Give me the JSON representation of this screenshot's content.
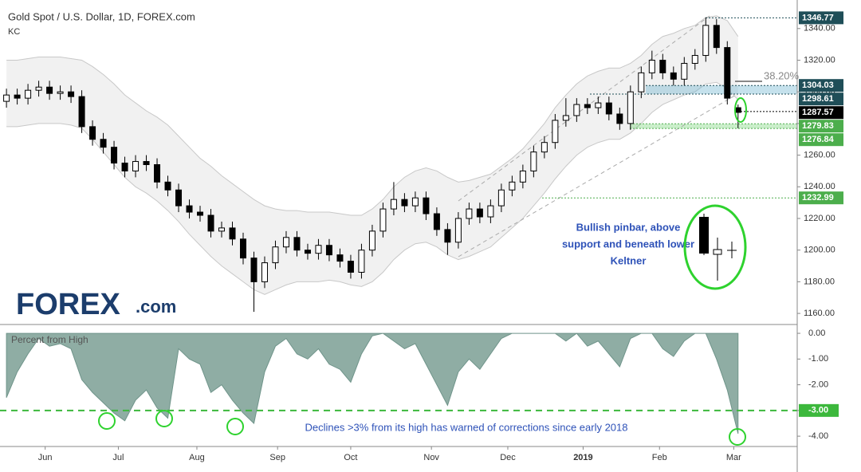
{
  "chart_data": [
    {
      "type": "candlestick",
      "title": "Gold Spot / U.S. Dollar, 1D, FOREX.com",
      "indicator": "KC",
      "x": [
        0,
        1,
        2,
        3,
        4,
        5,
        6,
        7,
        8,
        9,
        10,
        11,
        12,
        13,
        14,
        15,
        16,
        17,
        18,
        19,
        20,
        21,
        22,
        23,
        24,
        25,
        26,
        27,
        28,
        29,
        30,
        31,
        32,
        33,
        34,
        35,
        36,
        37,
        38,
        39,
        40,
        41,
        42,
        43,
        44,
        45,
        46,
        47,
        48,
        49,
        50,
        51,
        52,
        53,
        54,
        55,
        56,
        57,
        58,
        59,
        60,
        61,
        62,
        63,
        64,
        65,
        66,
        67,
        68
      ],
      "open": [
        1294,
        1298,
        1296,
        1301,
        1303,
        1299,
        1300,
        1297,
        1278,
        1270,
        1265,
        1255,
        1250,
        1256,
        1254,
        1243,
        1238,
        1228,
        1224,
        1222,
        1212,
        1214,
        1207,
        1195,
        1180,
        1192,
        1202,
        1208,
        1200,
        1198,
        1203,
        1197,
        1193,
        1186,
        1200,
        1212,
        1226,
        1232,
        1228,
        1233,
        1223,
        1213,
        1205,
        1220,
        1226,
        1221,
        1228,
        1238,
        1243,
        1250,
        1262,
        1268,
        1282,
        1285,
        1292,
        1290,
        1293,
        1286,
        1280,
        1300,
        1312,
        1320,
        1312,
        1308,
        1318,
        1323,
        1342,
        1328,
        1290
      ],
      "high": [
        1302,
        1302,
        1305,
        1307,
        1307,
        1304,
        1304,
        1301,
        1282,
        1274,
        1269,
        1259,
        1260,
        1260,
        1258,
        1247,
        1242,
        1232,
        1228,
        1226,
        1218,
        1218,
        1211,
        1199,
        1196,
        1206,
        1212,
        1212,
        1204,
        1207,
        1207,
        1201,
        1197,
        1204,
        1216,
        1230,
        1243,
        1236,
        1237,
        1237,
        1227,
        1217,
        1224,
        1230,
        1230,
        1232,
        1242,
        1247,
        1254,
        1266,
        1272,
        1286,
        1296,
        1296,
        1296,
        1297,
        1297,
        1290,
        1304,
        1316,
        1326,
        1324,
        1316,
        1322,
        1327,
        1347,
        1346,
        1332,
        1292
      ],
      "low": [
        1290,
        1292,
        1292,
        1297,
        1295,
        1295,
        1293,
        1274,
        1266,
        1261,
        1251,
        1246,
        1246,
        1250,
        1239,
        1234,
        1224,
        1220,
        1218,
        1208,
        1208,
        1203,
        1191,
        1161,
        1176,
        1188,
        1198,
        1196,
        1194,
        1194,
        1193,
        1189,
        1182,
        1182,
        1196,
        1208,
        1222,
        1224,
        1224,
        1219,
        1209,
        1197,
        1201,
        1216,
        1217,
        1217,
        1224,
        1234,
        1239,
        1246,
        1258,
        1264,
        1278,
        1281,
        1286,
        1286,
        1282,
        1276,
        1276,
        1296,
        1308,
        1308,
        1304,
        1304,
        1314,
        1319,
        1324,
        1292,
        1277
      ],
      "close": [
        1298,
        1296,
        1301,
        1303,
        1299,
        1300,
        1297,
        1278,
        1270,
        1265,
        1255,
        1250,
        1256,
        1254,
        1243,
        1238,
        1228,
        1224,
        1222,
        1212,
        1214,
        1207,
        1195,
        1180,
        1192,
        1202,
        1208,
        1200,
        1198,
        1203,
        1197,
        1193,
        1186,
        1200,
        1212,
        1226,
        1232,
        1228,
        1233,
        1223,
        1213,
        1205,
        1220,
        1226,
        1221,
        1228,
        1238,
        1243,
        1250,
        1262,
        1268,
        1282,
        1285,
        1292,
        1290,
        1293,
        1286,
        1280,
        1300,
        1312,
        1320,
        1312,
        1308,
        1318,
        1323,
        1342,
        1328,
        1296,
        1287
      ],
      "up_color": "#ffffff",
      "down_color": "#000000",
      "keltner": {
        "color": "#f1f1f1",
        "upper": [
          1320,
          1320,
          1321,
          1322,
          1322,
          1322,
          1321,
          1320,
          1316,
          1311,
          1305,
          1298,
          1293,
          1288,
          1284,
          1279,
          1272,
          1265,
          1258,
          1253,
          1247,
          1242,
          1237,
          1232,
          1228,
          1226,
          1225,
          1225,
          1224,
          1224,
          1224,
          1223,
          1222,
          1222,
          1226,
          1232,
          1240,
          1246,
          1250,
          1252,
          1250,
          1246,
          1243,
          1244,
          1246,
          1248,
          1253,
          1258,
          1264,
          1272,
          1280,
          1290,
          1298,
          1305,
          1310,
          1313,
          1315,
          1315,
          1318,
          1323,
          1330,
          1335,
          1337,
          1340,
          1342,
          1347,
          1348,
          1345,
          1335
        ],
        "lower": [
          1278,
          1278,
          1279,
          1280,
          1280,
          1280,
          1279,
          1277,
          1270,
          1262,
          1254,
          1246,
          1240,
          1236,
          1231,
          1225,
          1218,
          1210,
          1203,
          1196,
          1190,
          1185,
          1180,
          1175,
          1172,
          1175,
          1178,
          1180,
          1180,
          1180,
          1181,
          1180,
          1178,
          1177,
          1180,
          1186,
          1194,
          1200,
          1204,
          1205,
          1202,
          1197,
          1194,
          1196,
          1199,
          1202,
          1208,
          1214,
          1220,
          1228,
          1236,
          1245,
          1253,
          1260,
          1265,
          1268,
          1270,
          1270,
          1274,
          1280,
          1287,
          1292,
          1295,
          1298,
          1300,
          1305,
          1306,
          1302,
          1295
        ]
      },
      "xlim": [
        -0.6,
        73.5
      ],
      "ylim": [
        1154,
        1354
      ],
      "yticks": [
        {
          "value": 1160,
          "label": "1160.00"
        },
        {
          "value": 1180,
          "label": "1180.00"
        },
        {
          "value": 1200,
          "label": "1200.00"
        },
        {
          "value": 1220,
          "label": "1220.00"
        },
        {
          "value": 1240,
          "label": "1240.00"
        },
        {
          "value": 1260,
          "label": "1260.00"
        },
        {
          "value": 1280,
          "label": "1280.00"
        },
        {
          "value": 1300,
          "label": "1300.00"
        },
        {
          "value": 1320,
          "label": "1320.00"
        },
        {
          "value": 1340,
          "label": "1340.00"
        }
      ],
      "levels": [
        {
          "value": 1346.77,
          "color": "#1f4e58"
        },
        {
          "value": 1304.03,
          "color": "#1f4e58"
        },
        {
          "value": 1298.61,
          "color": "#1f4e58"
        },
        {
          "value": 1287.57,
          "color": "#000000"
        },
        {
          "value": 1279.83,
          "color": "#4cae4c"
        },
        {
          "value": 1276.84,
          "color": "#4cae4c"
        },
        {
          "value": 1232.99,
          "color": "#4cae4c"
        }
      ],
      "fib_label": "38.20%",
      "pinbar_note": [
        "Bullish pinbar, above",
        "support and beneath lower",
        "Keltner"
      ]
    },
    {
      "type": "area",
      "title": "Percent from High",
      "color": "#8fada4",
      "x": [
        0,
        1,
        2,
        3,
        4,
        5,
        6,
        7,
        8,
        9,
        10,
        11,
        12,
        13,
        14,
        15,
        16,
        17,
        18,
        19,
        20,
        21,
        22,
        23,
        24,
        25,
        26,
        27,
        28,
        29,
        30,
        31,
        32,
        33,
        34,
        35,
        36,
        37,
        38,
        39,
        40,
        41,
        42,
        43,
        44,
        45,
        46,
        47,
        48,
        49,
        50,
        51,
        52,
        53,
        54,
        55,
        56,
        57,
        58,
        59,
        60,
        61,
        62,
        63,
        64,
        65,
        66,
        67,
        68
      ],
      "values": [
        -2.5,
        -1.5,
        -0.8,
        -0.2,
        -0.5,
        -0.4,
        -0.6,
        -1.8,
        -2.3,
        -2.7,
        -3.1,
        -3.4,
        -2.6,
        -2.2,
        -2.9,
        -3.3,
        -0.6,
        -1.0,
        -1.2,
        -2.3,
        -2.0,
        -2.6,
        -3.1,
        -3.5,
        -1.5,
        -0.5,
        -0.2,
        -0.8,
        -1.0,
        -0.6,
        -1.2,
        -1.4,
        -1.9,
        -0.8,
        -0.1,
        0,
        -0.3,
        -0.6,
        -0.4,
        -1.2,
        -2.0,
        -2.8,
        -1.5,
        -1.0,
        -1.4,
        -0.8,
        -0.2,
        0,
        0,
        0,
        0,
        0,
        -0.3,
        0,
        -0.5,
        -0.3,
        -0.8,
        -1.3,
        -0.2,
        0,
        0,
        -0.6,
        -0.9,
        -0.3,
        0,
        0,
        -1.0,
        -2.2,
        -3.9
      ],
      "threshold": -3,
      "threshold_color": "#3cb83c",
      "xlim": [
        -0.6,
        73.5
      ],
      "ylim": [
        -4.4,
        0.25
      ],
      "yticks": [
        {
          "value": 0,
          "label": "0.00"
        },
        {
          "value": -1,
          "label": "-1.00"
        },
        {
          "value": -2,
          "label": "-2.00"
        },
        {
          "value": -3,
          "label": "-3.00"
        },
        {
          "value": -4,
          "label": "-4.00"
        }
      ],
      "xticks": [
        {
          "value": 3.6,
          "label": "Jun"
        },
        {
          "value": 10.4,
          "label": "Jul"
        },
        {
          "value": 17.7,
          "label": "Aug"
        },
        {
          "value": 25.2,
          "label": "Sep"
        },
        {
          "value": 32,
          "label": "Oct"
        },
        {
          "value": 39.5,
          "label": "Nov"
        },
        {
          "value": 46.6,
          "label": "Dec"
        },
        {
          "value": 53.6,
          "label": "2019"
        },
        {
          "value": 60.7,
          "label": "Feb"
        },
        {
          "value": 67.6,
          "label": "Mar"
        }
      ],
      "annotation": "Declines >3% from its high has warned of corrections since early 2018"
    }
  ],
  "logo": {
    "brand": "FOREX",
    "suffix": ".com"
  }
}
